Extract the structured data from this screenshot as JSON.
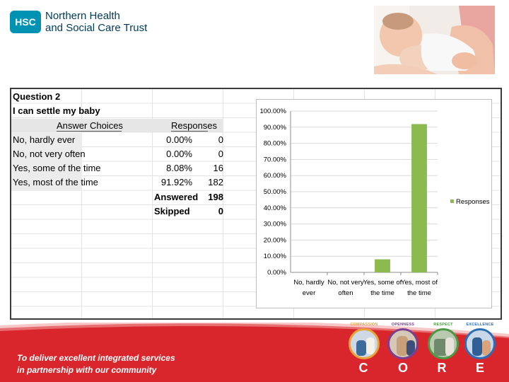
{
  "header": {
    "logo_mark": "HSC",
    "org_line1": "Northern Health",
    "org_line2": "and Social Care Trust"
  },
  "table": {
    "question": "Question 2",
    "statement": "I can settle my baby",
    "col_choices": "Answer Choices",
    "col_responses": "Responses",
    "rows": [
      {
        "choice": "No, hardly ever",
        "pct": "0.00%",
        "count": "0"
      },
      {
        "choice": "No, not very often",
        "pct": "0.00%",
        "count": "0"
      },
      {
        "choice": "Yes, some of the time",
        "pct": "8.08%",
        "count": "16"
      },
      {
        "choice": "Yes, most of the time",
        "pct": "91.92%",
        "count": "182"
      }
    ],
    "answered_label": "Answered",
    "answered_value": "198",
    "skipped_label": "Skipped",
    "skipped_value": "0"
  },
  "chart_data": {
    "type": "bar",
    "categories": [
      [
        "No, hardly",
        "ever"
      ],
      [
        "No, not very",
        "often"
      ],
      [
        "Yes, some of",
        "the time"
      ],
      [
        "Yes, most of",
        "the time"
      ]
    ],
    "series": [
      {
        "name": "Responses",
        "values": [
          0.0,
          0.0,
          8.08,
          91.92
        ],
        "color": "#8cba4e"
      }
    ],
    "ylim": [
      0,
      100
    ],
    "yticks": [
      "0.00%",
      "10.00%",
      "20.00%",
      "30.00%",
      "40.00%",
      "50.00%",
      "60.00%",
      "70.00%",
      "80.00%",
      "90.00%",
      "100.00%"
    ],
    "grid": true,
    "legend": "right"
  },
  "footer": {
    "tagline_line1": "To deliver excellent integrated services",
    "tagline_line2": "in partnership with our community",
    "values": [
      {
        "label": "COMPASSION",
        "letter": "C",
        "color": "#e8a23a"
      },
      {
        "label": "OPENNESS",
        "letter": "O",
        "color": "#7a3f8f"
      },
      {
        "label": "RESPECT",
        "letter": "R",
        "color": "#4a9a45"
      },
      {
        "label": "EXCELLENCE",
        "letter": "E",
        "color": "#2a6fb5"
      }
    ],
    "band_color": "#d8262c"
  }
}
